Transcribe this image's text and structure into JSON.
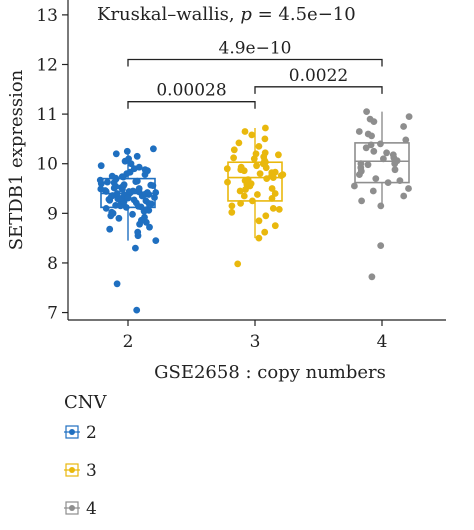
{
  "chart_data": {
    "type": "boxplot",
    "title": "",
    "annotation": {
      "prefix": "Kruskal–wallis, ",
      "p_symbol": "p",
      "suffix": " = 4.5e−10"
    },
    "xlabel": "GSE2658 : copy numbers",
    "ylabel": "SETDB1 expression",
    "ylim": [
      6.85,
      13.3
    ],
    "yticks": [
      7,
      8,
      9,
      10,
      11,
      12,
      13
    ],
    "categories": [
      "2",
      "3",
      "4"
    ],
    "colors": [
      "#1f6fc0",
      "#e9b80d",
      "#8e8e8e"
    ],
    "boxes": [
      {
        "name": "2",
        "q1": 9.12,
        "median": 9.4,
        "q3": 9.7,
        "whisker_low": 8.45,
        "whisker_high": 10.3
      },
      {
        "name": "3",
        "q1": 9.25,
        "median": 9.72,
        "q3": 10.03,
        "whisker_low": 8.5,
        "whisker_high": 10.72
      },
      {
        "name": "4",
        "q1": 9.62,
        "median": 10.05,
        "q3": 10.42,
        "whisker_low": 9.2,
        "whisker_high": 11.05
      }
    ],
    "points": [
      [
        7.05,
        7.58,
        8.3,
        8.45,
        8.55,
        8.62,
        8.68,
        8.72,
        8.78,
        8.82,
        8.86,
        8.9,
        8.92,
        8.95,
        8.98,
        9.0,
        9.02,
        9.04,
        9.06,
        9.08,
        9.1,
        9.12,
        9.13,
        9.15,
        9.16,
        9.18,
        9.19,
        9.2,
        9.22,
        9.23,
        9.25,
        9.26,
        9.28,
        9.29,
        9.3,
        9.31,
        9.32,
        9.33,
        9.35,
        9.36,
        9.37,
        9.38,
        9.39,
        9.4,
        9.41,
        9.42,
        9.43,
        9.44,
        9.45,
        9.46,
        9.47,
        9.48,
        9.5,
        9.51,
        9.52,
        9.53,
        9.55,
        9.56,
        9.58,
        9.6,
        9.62,
        9.63,
        9.65,
        9.67,
        9.69,
        9.71,
        9.73,
        9.75,
        9.78,
        9.8,
        9.83,
        9.86,
        9.9,
        9.93,
        9.96,
        10.0,
        10.05,
        10.1,
        10.15,
        10.2,
        10.25,
        10.3,
        9.34,
        9.44,
        9.57,
        9.27,
        9.49,
        9.64,
        9.21,
        9.74,
        9.88,
        9.14,
        9.54,
        9.38,
        9.42,
        9.31
      ],
      [
        7.98,
        8.5,
        8.62,
        8.75,
        8.85,
        8.95,
        9.02,
        9.08,
        9.15,
        9.2,
        9.25,
        9.3,
        9.35,
        9.4,
        9.45,
        9.5,
        9.55,
        9.6,
        9.63,
        9.66,
        9.7,
        9.72,
        9.75,
        9.78,
        9.8,
        9.83,
        9.86,
        9.9,
        9.93,
        9.96,
        10.0,
        10.03,
        10.06,
        10.1,
        10.14,
        10.18,
        10.22,
        10.28,
        10.35,
        10.42,
        10.5,
        10.58,
        10.65,
        10.72,
        9.58,
        9.68,
        9.88,
        9.48,
        10.12,
        9.38,
        9.76,
        9.92,
        10.2,
        9.1,
        9.82
      ],
      [
        7.72,
        8.35,
        9.15,
        9.25,
        9.35,
        9.45,
        9.55,
        9.62,
        9.7,
        9.78,
        9.85,
        9.92,
        10.0,
        10.06,
        10.12,
        10.18,
        10.25,
        10.32,
        10.4,
        10.48,
        10.56,
        10.65,
        10.75,
        10.85,
        10.95,
        11.05,
        9.98,
        10.22,
        9.5,
        10.6,
        9.88,
        10.38,
        9.66,
        10.9,
        10.1,
        10.0
      ]
    ],
    "brackets": [
      {
        "from": "2",
        "to": "4",
        "y": 12.1,
        "label": "4.9e−10"
      },
      {
        "from": "3",
        "to": "4",
        "y": 11.55,
        "label": "0.0022"
      },
      {
        "from": "2",
        "to": "3",
        "y": 11.25,
        "label": "0.00028"
      }
    ],
    "legend": {
      "title": "CNV",
      "items": [
        "2",
        "3",
        "4"
      ],
      "placement": "bottom-left"
    },
    "grid": false
  }
}
